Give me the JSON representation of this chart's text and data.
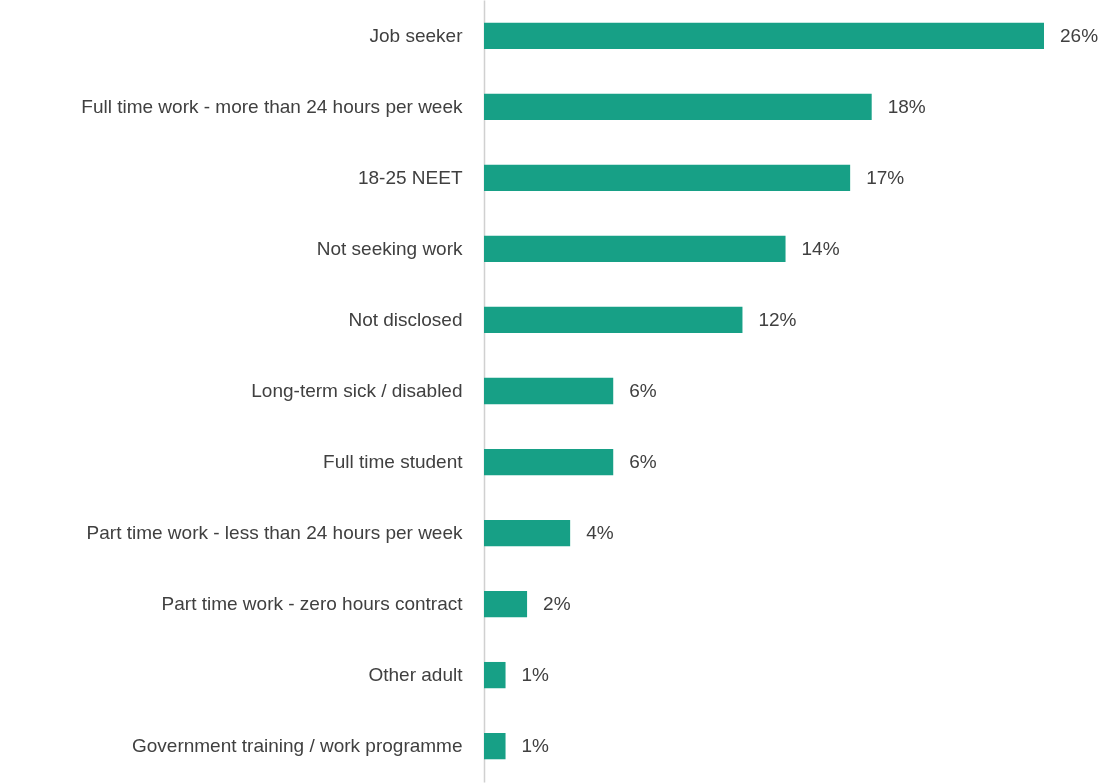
{
  "chart_data": {
    "type": "bar",
    "orientation": "horizontal",
    "categories": [
      "Job seeker",
      "Full time work - more than 24 hours per week",
      "18-25 NEET",
      "Not seeking work",
      "Not disclosed",
      "Long-term sick / disabled",
      "Full time student",
      "Part time work - less than 24 hours per week",
      "Part time work - zero hours contract",
      "Other adult",
      "Government training / work programme"
    ],
    "values": [
      26,
      18,
      17,
      14,
      12,
      6,
      6,
      4,
      2,
      1,
      1
    ],
    "value_labels": [
      "26%",
      "18%",
      "17%",
      "14%",
      "12%",
      "6%",
      "6%",
      "4%",
      "2%",
      "1%",
      "1%"
    ],
    "color": "#17a086",
    "xlim": [
      0,
      26
    ],
    "tick_labels": "y",
    "grid": false
  }
}
